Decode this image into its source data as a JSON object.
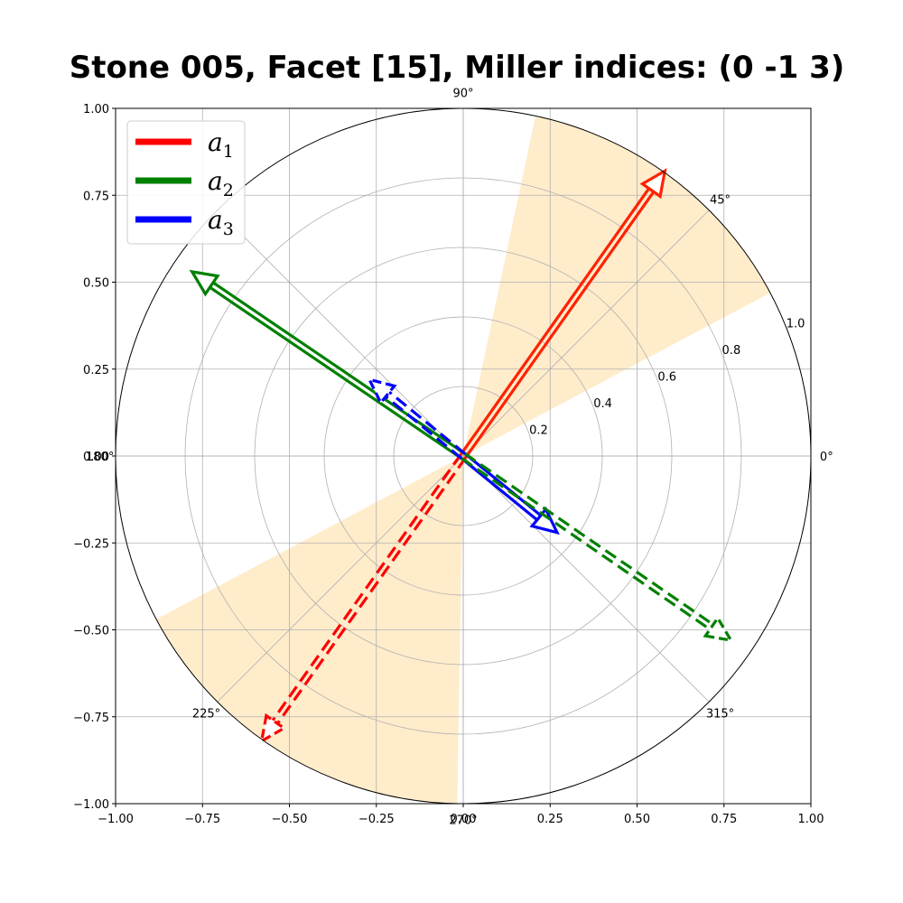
{
  "chart_data": {
    "type": "polar-vector",
    "title": "Stone 005, Facet [15], Miller indices: (0  -1  3)",
    "cartesian_axes": {
      "xlim": [
        -1.0,
        1.0
      ],
      "ylim": [
        -1.0,
        1.0
      ],
      "x_ticks": [
        "−1.00",
        "−0.75",
        "−0.50",
        "−0.25",
        "0.00",
        "0.25",
        "0.50",
        "0.75",
        "1.00"
      ],
      "y_ticks": [
        "1.00",
        "0.75",
        "0.50",
        "0.25",
        "0.00",
        "−0.25",
        "−0.50",
        "−0.75",
        "−1.00"
      ],
      "x_tick_values": [
        -1.0,
        -0.75,
        -0.5,
        -0.25,
        0.0,
        0.25,
        0.5,
        0.75,
        1.0
      ],
      "y_tick_values": [
        1.0,
        0.75,
        0.5,
        0.25,
        0.0,
        -0.25,
        -0.5,
        -0.75,
        -1.0
      ],
      "grid": true
    },
    "polar_axes": {
      "radial_ticks": [
        "0.2",
        "0.4",
        "0.6",
        "0.8",
        "1.0"
      ],
      "radial_tick_values": [
        0.2,
        0.4,
        0.6,
        0.8,
        1.0
      ],
      "radial_label_angle_deg": 22.5,
      "angle_labels": [
        {
          "deg": 0,
          "label": "0°"
        },
        {
          "deg": 45,
          "label": "45°"
        },
        {
          "deg": 90,
          "label": "90°"
        },
        {
          "deg": 180,
          "label": "180°"
        },
        {
          "deg": 225,
          "label": "225°"
        },
        {
          "deg": 270,
          "label": "270°"
        },
        {
          "deg": 315,
          "label": "315°"
        }
      ],
      "angle_gridlines_deg": [
        0,
        45,
        90,
        135,
        180,
        225,
        270,
        315
      ],
      "grid": true
    },
    "shaded_sectors": [
      {
        "start_deg": 28,
        "end_deg": 78,
        "color": "#ffe0a8",
        "opacity": 0.6
      },
      {
        "start_deg": 208,
        "end_deg": 269,
        "color": "#ffe0a8",
        "opacity": 0.6
      }
    ],
    "vectors": [
      {
        "name": "a1",
        "color": "#ff2200",
        "style": "solid",
        "x": 0.58,
        "y": 0.82
      },
      {
        "name": "a2",
        "color": "#008000",
        "style": "solid",
        "x": -0.78,
        "y": 0.53
      },
      {
        "name": "a3",
        "color": "#0000ff",
        "style": "solid",
        "x": 0.27,
        "y": -0.22
      },
      {
        "name": "a1",
        "color": "#ff0000",
        "style": "dashed",
        "x": -0.58,
        "y": -0.82
      },
      {
        "name": "a2",
        "color": "#008000",
        "style": "dashed",
        "x": 0.77,
        "y": -0.53
      },
      {
        "name": "a3",
        "color": "#0000ff",
        "style": "dashed",
        "x": -0.27,
        "y": 0.22
      }
    ],
    "legend": {
      "placement": "top-left",
      "entries": [
        {
          "label": "a",
          "sub": "1",
          "color": "#ff0000"
        },
        {
          "label": "a",
          "sub": "2",
          "color": "#008000"
        },
        {
          "label": "a",
          "sub": "3",
          "color": "#0000ff"
        }
      ]
    }
  }
}
